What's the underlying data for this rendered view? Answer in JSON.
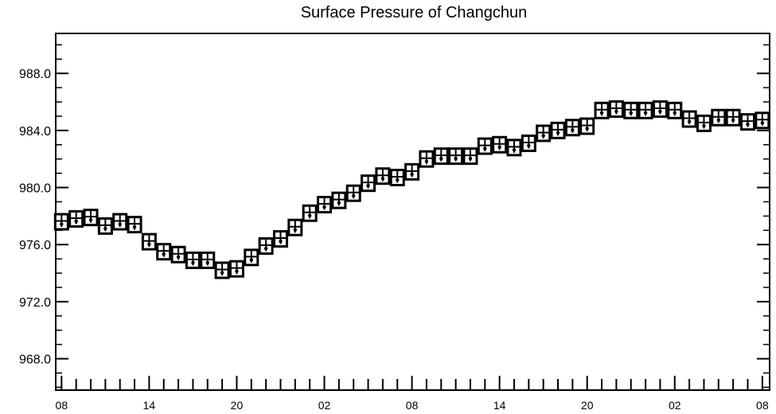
{
  "chart_data": {
    "type": "scatter",
    "title": "Surface Pressure of Changchun",
    "xlabel": "",
    "ylabel": "",
    "x_tick_labels": [
      "08",
      "14",
      "20",
      "02",
      "08",
      "14",
      "20",
      "02",
      "08"
    ],
    "y_tick_labels": [
      "968.0",
      "972.0",
      "976.0",
      "980.0",
      "984.0",
      "988.0"
    ],
    "y_tick_values": [
      968.0,
      972.0,
      976.0,
      980.0,
      984.0,
      988.0
    ],
    "ylim": [
      965.8,
      990.8
    ],
    "xlim": [
      -0.4,
      48.5
    ],
    "grid": false,
    "legend": "none",
    "x": [
      0,
      1,
      2,
      3,
      4,
      5,
      6,
      7,
      8,
      9,
      10,
      11,
      12,
      13,
      14,
      15,
      16,
      17,
      18,
      19,
      20,
      21,
      22,
      23,
      24,
      25,
      26,
      27,
      28,
      29,
      30,
      31,
      32,
      33,
      34,
      35,
      36,
      37,
      38,
      39,
      40,
      41,
      42,
      43,
      44,
      45,
      46,
      47,
      48
    ],
    "values": [
      977.6,
      977.8,
      977.9,
      977.3,
      977.6,
      977.4,
      976.2,
      975.5,
      975.3,
      974.9,
      974.9,
      974.2,
      974.3,
      975.1,
      975.9,
      976.4,
      977.2,
      978.2,
      978.8,
      979.1,
      979.6,
      980.3,
      980.8,
      980.7,
      981.1,
      982.0,
      982.2,
      982.2,
      982.2,
      982.9,
      983.0,
      982.8,
      983.1,
      983.8,
      984.0,
      984.2,
      984.3,
      985.4,
      985.5,
      985.4,
      985.4,
      985.5,
      985.4,
      984.8,
      984.5,
      984.9,
      984.9,
      984.6,
      984.7
    ],
    "colors": {
      "axis": "#000000",
      "marker": "#000000",
      "background": "#ffffff"
    }
  }
}
